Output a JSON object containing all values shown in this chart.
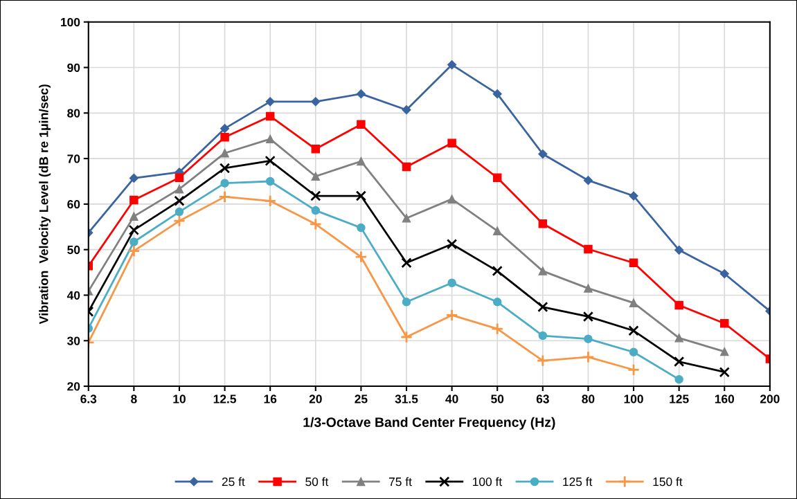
{
  "chart_data": {
    "type": "line",
    "xlabel": "1/3-Octave Band Center Frequency (Hz)",
    "ylabel": "Vibration  Velocity Level (dB re 1µin/sec)",
    "categories": [
      "6.3",
      "8",
      "10",
      "12.5",
      "16",
      "20",
      "25",
      "31.5",
      "40",
      "50",
      "63",
      "80",
      "100",
      "125",
      "160",
      "200"
    ],
    "ylim": [
      20,
      100
    ],
    "yticks": [
      20,
      30,
      40,
      50,
      60,
      70,
      80,
      90,
      100
    ],
    "grid": true,
    "legend": "bottom",
    "series": [
      {
        "name": "25 ft",
        "color": "#3a64a0",
        "marker": "diamond",
        "values": [
          53.7,
          65.7,
          67,
          76.6,
          82.5,
          82.5,
          84.2,
          80.7,
          90.6,
          84.2,
          71,
          65.2,
          61.8,
          49.9,
          44.7,
          36.5
        ]
      },
      {
        "name": "50 ft",
        "color": "#ff0000",
        "marker": "square",
        "values": [
          46.4,
          60.9,
          65.8,
          74.7,
          79.3,
          72.1,
          77.5,
          68.2,
          73.4,
          65.8,
          55.7,
          50.1,
          47.1,
          37.8,
          33.8,
          26
        ]
      },
      {
        "name": "75 ft",
        "color": "#808080",
        "marker": "triangle",
        "values": [
          40.9,
          57.3,
          63.3,
          71.2,
          74.3,
          66.1,
          69.4,
          56.9,
          61.1,
          54.1,
          45.3,
          41.5,
          38.3,
          30.6,
          27.6,
          null
        ]
      },
      {
        "name": "100 ft",
        "color": "#000000",
        "marker": "cross",
        "values": [
          36.4,
          54.3,
          60.7,
          67.9,
          69.5,
          61.8,
          61.8,
          47.1,
          51.2,
          45.3,
          37.4,
          35.3,
          32.2,
          25.4,
          23.1,
          null
        ]
      },
      {
        "name": "125 ft",
        "color": "#4bacc6",
        "marker": "circle",
        "values": [
          32.7,
          51.7,
          58.3,
          64.6,
          65,
          58.6,
          54.8,
          38.5,
          42.7,
          38.5,
          31.1,
          30.4,
          27.5,
          21.5,
          null,
          null
        ]
      },
      {
        "name": "150 ft",
        "color": "#f79646",
        "marker": "plus",
        "values": [
          29.6,
          49.7,
          56.3,
          61.6,
          60.7,
          55.6,
          48.4,
          30.8,
          35.6,
          32.6,
          25.6,
          26.4,
          23.6,
          null,
          null,
          null
        ]
      }
    ]
  }
}
